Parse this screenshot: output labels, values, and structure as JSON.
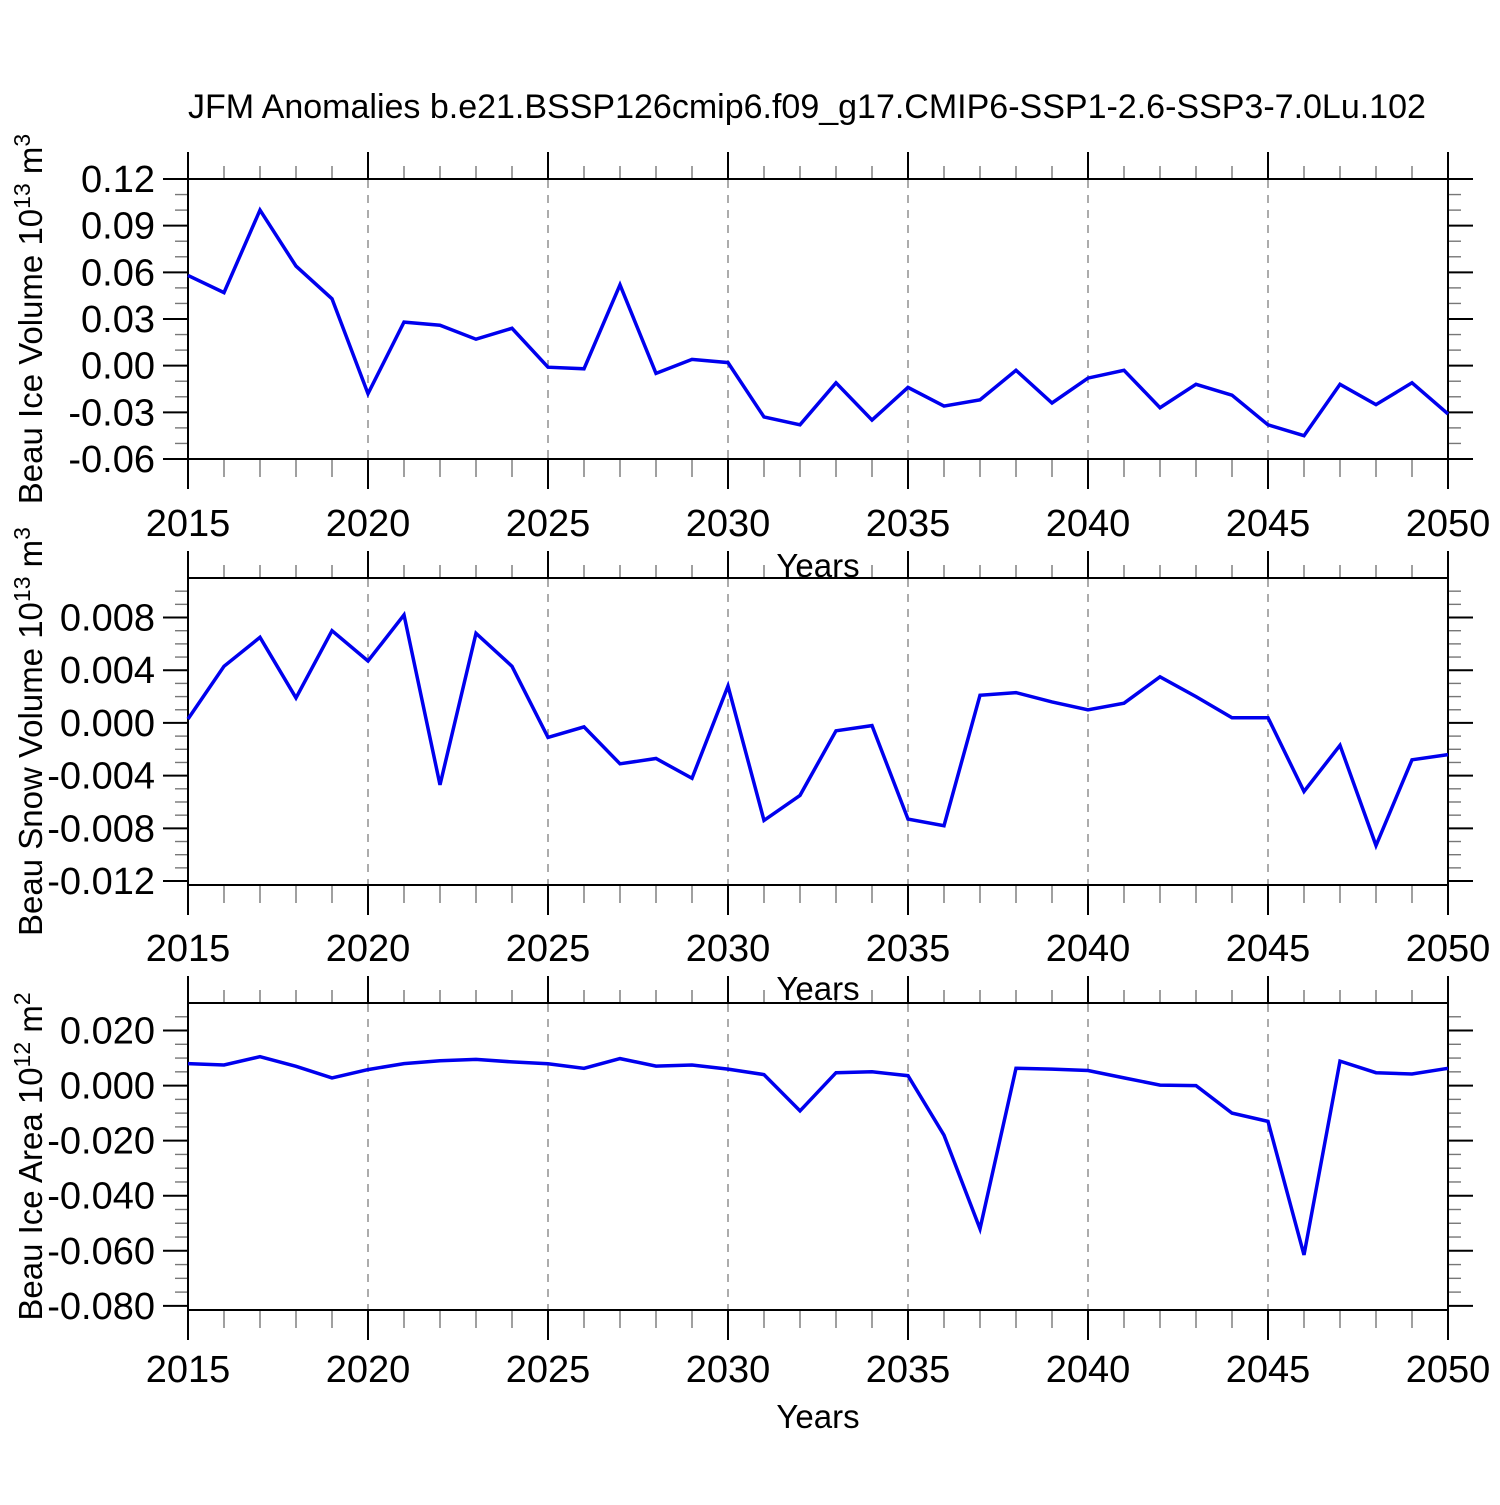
{
  "title": "JFM Anomalies b.e21.BSSP126cmip6.f09_g17.CMIP6-SSP1-2.6-SSP3-7.0Lu.102",
  "chart_data": {
    "type": "line",
    "title": "JFM Anomalies b.e21.BSSP126cmip6.f09_g17.CMIP6-SSP1-2.6-SSP3-7.0Lu.102",
    "xlabel": "Years",
    "line_color": "#0000ee",
    "grid_color": "#888888",
    "x": [
      2015,
      2016,
      2017,
      2018,
      2019,
      2020,
      2021,
      2022,
      2023,
      2024,
      2025,
      2026,
      2027,
      2028,
      2029,
      2030,
      2031,
      2032,
      2033,
      2034,
      2035,
      2036,
      2037,
      2038,
      2039,
      2040,
      2041,
      2042,
      2043,
      2044,
      2045,
      2046,
      2047,
      2048,
      2049,
      2050
    ],
    "x_major_ticks": [
      2015,
      2020,
      2025,
      2030,
      2035,
      2040,
      2045,
      2050
    ],
    "x_major_labels": [
      "2015",
      "2020",
      "2025",
      "2030",
      "2035",
      "2040",
      "2045",
      "2050"
    ],
    "grid_years": [
      2020,
      2025,
      2030,
      2035,
      2040,
      2045
    ],
    "xlim": [
      2015,
      2050
    ],
    "panels": [
      {
        "id": "ice-volume",
        "ylabel": "Beau Ice Volume 10^13 m^3",
        "ylabel_parts": {
          "pre": "Beau Ice Volume 10",
          "sup1": "13",
          "mid": " m",
          "sup2": "3"
        },
        "ylim": [
          -0.06,
          0.12
        ],
        "yticks": [
          0.12,
          0.09,
          0.06,
          0.03,
          0.0,
          -0.03,
          -0.06
        ],
        "ytick_labels": [
          "0.12",
          "0.09",
          "0.06",
          "0.03",
          "0.00",
          "-0.03",
          "-0.06"
        ],
        "yminor_step": 0.01,
        "values": [
          0.058,
          0.047,
          0.1,
          0.064,
          0.043,
          -0.018,
          0.028,
          0.026,
          0.017,
          0.024,
          -0.001,
          -0.002,
          0.052,
          -0.005,
          0.004,
          0.002,
          -0.033,
          -0.038,
          -0.011,
          -0.035,
          -0.014,
          -0.026,
          -0.022,
          -0.003,
          -0.024,
          -0.008,
          -0.003,
          -0.027,
          -0.012,
          -0.019,
          -0.038,
          -0.045,
          -0.012,
          -0.025,
          -0.011,
          -0.031
        ]
      },
      {
        "id": "snow-volume",
        "ylabel": "Beau Snow Volume 10^13 m^3",
        "ylabel_parts": {
          "pre": "Beau Snow Volume 10",
          "sup1": "13",
          "mid": " m",
          "sup2": "3"
        },
        "ylim": [
          -0.0123,
          0.011
        ],
        "yticks": [
          0.008,
          0.004,
          0.0,
          -0.004,
          -0.008,
          -0.012
        ],
        "ytick_labels": [
          "0.008",
          "0.004",
          "0.000",
          "-0.004",
          "-0.008",
          "-0.012"
        ],
        "yminor_step": 0.001,
        "values": [
          0.0003,
          0.0043,
          0.0065,
          0.0019,
          0.007,
          0.0047,
          0.0082,
          -0.0047,
          0.0068,
          0.0043,
          -0.0011,
          -0.0003,
          -0.0031,
          -0.0027,
          -0.0042,
          0.0028,
          -0.0074,
          -0.0055,
          -0.0006,
          -0.0002,
          -0.0073,
          -0.0078,
          0.0021,
          0.0023,
          0.0016,
          0.001,
          0.0015,
          0.0035,
          0.002,
          0.0004,
          0.0004,
          -0.0052,
          -0.0017,
          -0.0093,
          -0.0028,
          -0.0024
        ]
      },
      {
        "id": "ice-area",
        "ylabel": "Beau Ice Area 10^12 m^2",
        "ylabel_parts": {
          "pre": "Beau Ice Area 10",
          "sup1": "12",
          "mid": " m",
          "sup2": "2"
        },
        "ylim": [
          -0.0815,
          0.03
        ],
        "yticks": [
          0.02,
          0.0,
          -0.02,
          -0.04,
          -0.06,
          -0.08
        ],
        "ytick_labels": [
          "0.020",
          "0.000",
          "-0.020",
          "-0.040",
          "-0.060",
          "-0.080"
        ],
        "yminor_step": 0.005,
        "values": [
          0.008,
          0.0075,
          0.0105,
          0.007,
          0.0028,
          0.0058,
          0.008,
          0.009,
          0.0095,
          0.0086,
          0.0079,
          0.0063,
          0.0098,
          0.0071,
          0.0075,
          0.006,
          0.004,
          -0.0092,
          0.0047,
          0.005,
          0.0036,
          -0.018,
          -0.052,
          0.0063,
          0.006,
          0.0055,
          0.0028,
          0.0002,
          0.0,
          -0.01,
          -0.013,
          -0.0615,
          0.0089,
          0.0047,
          0.0042,
          0.0063
        ]
      }
    ]
  }
}
